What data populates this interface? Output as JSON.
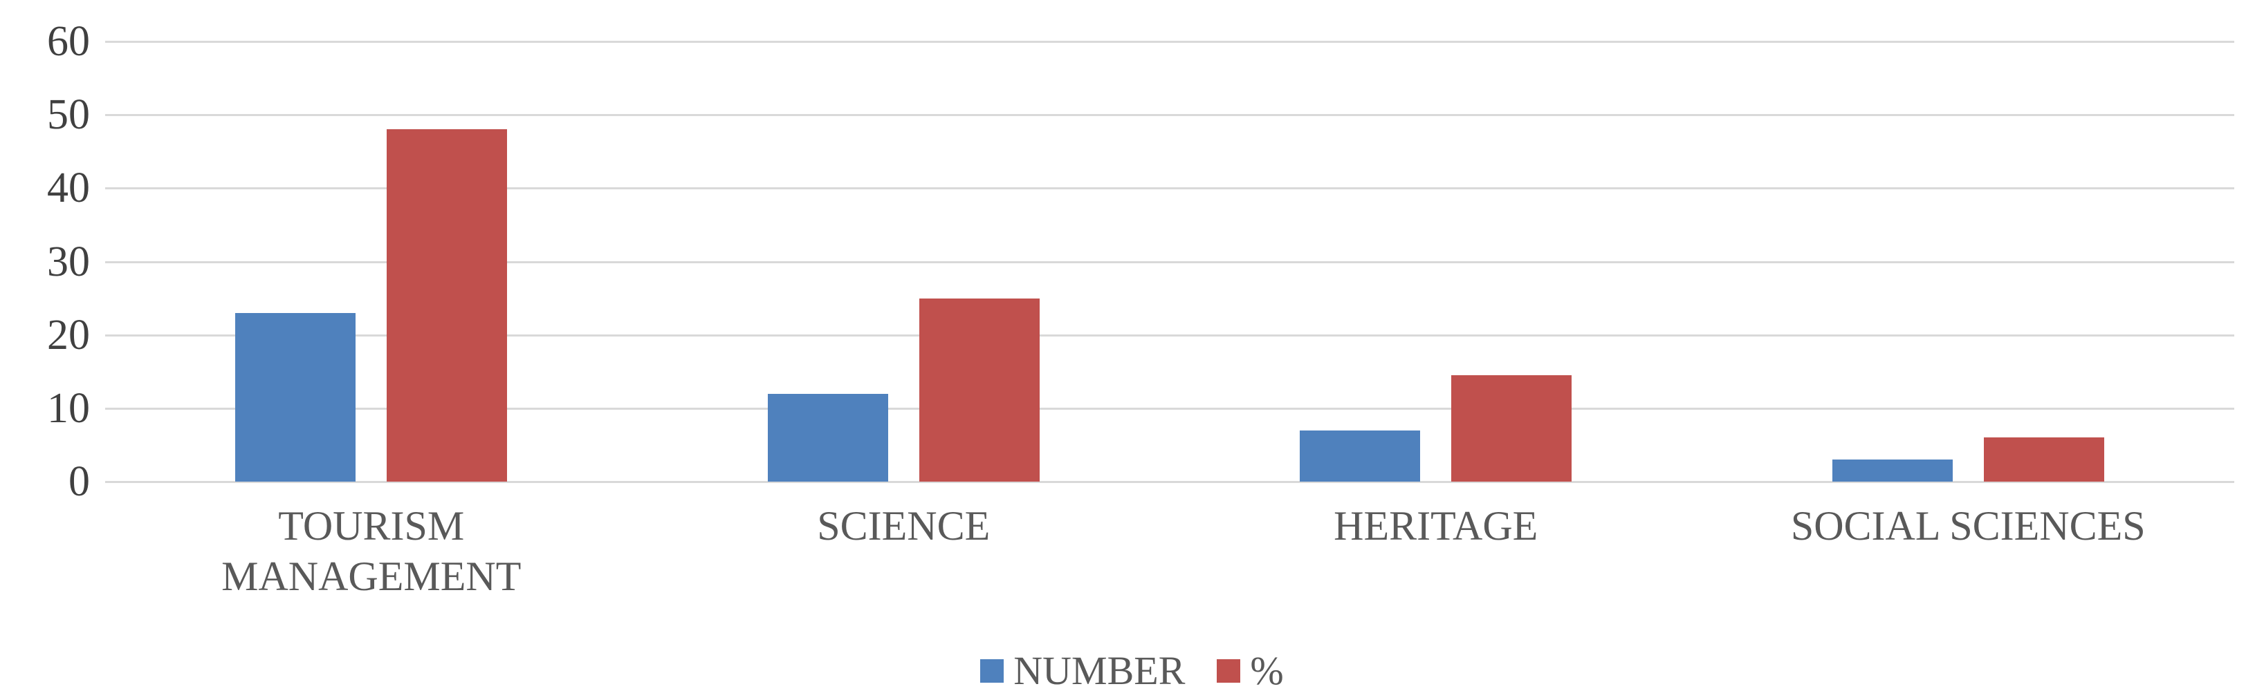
{
  "chart_data": {
    "type": "bar",
    "title": "",
    "xlabel": "",
    "ylabel": "",
    "categories": [
      "TOURISM MANAGEMENT",
      "SCIENCE",
      "HERITAGE",
      "SOCIAL SCIENCES"
    ],
    "series": [
      {
        "name": "NUMBER",
        "color": "#4F81BD",
        "values": [
          23,
          12,
          7,
          3
        ]
      },
      {
        "name": "%",
        "color": "#C0504D",
        "values": [
          48,
          25,
          14.5,
          6
        ]
      }
    ],
    "ylim": [
      0,
      60
    ],
    "yticks": [
      0,
      10,
      20,
      30,
      40,
      50,
      60
    ],
    "grid": true,
    "legend_position": "bottom-center"
  },
  "colors": {
    "series_number": "#4F81BD",
    "series_percent": "#C0504D",
    "gridline": "#d9d9d9",
    "axis_text": "#404040",
    "category_text": "#595959",
    "background": "#ffffff"
  },
  "legend": {
    "items": [
      {
        "label": "NUMBER"
      },
      {
        "label": "%"
      }
    ]
  }
}
